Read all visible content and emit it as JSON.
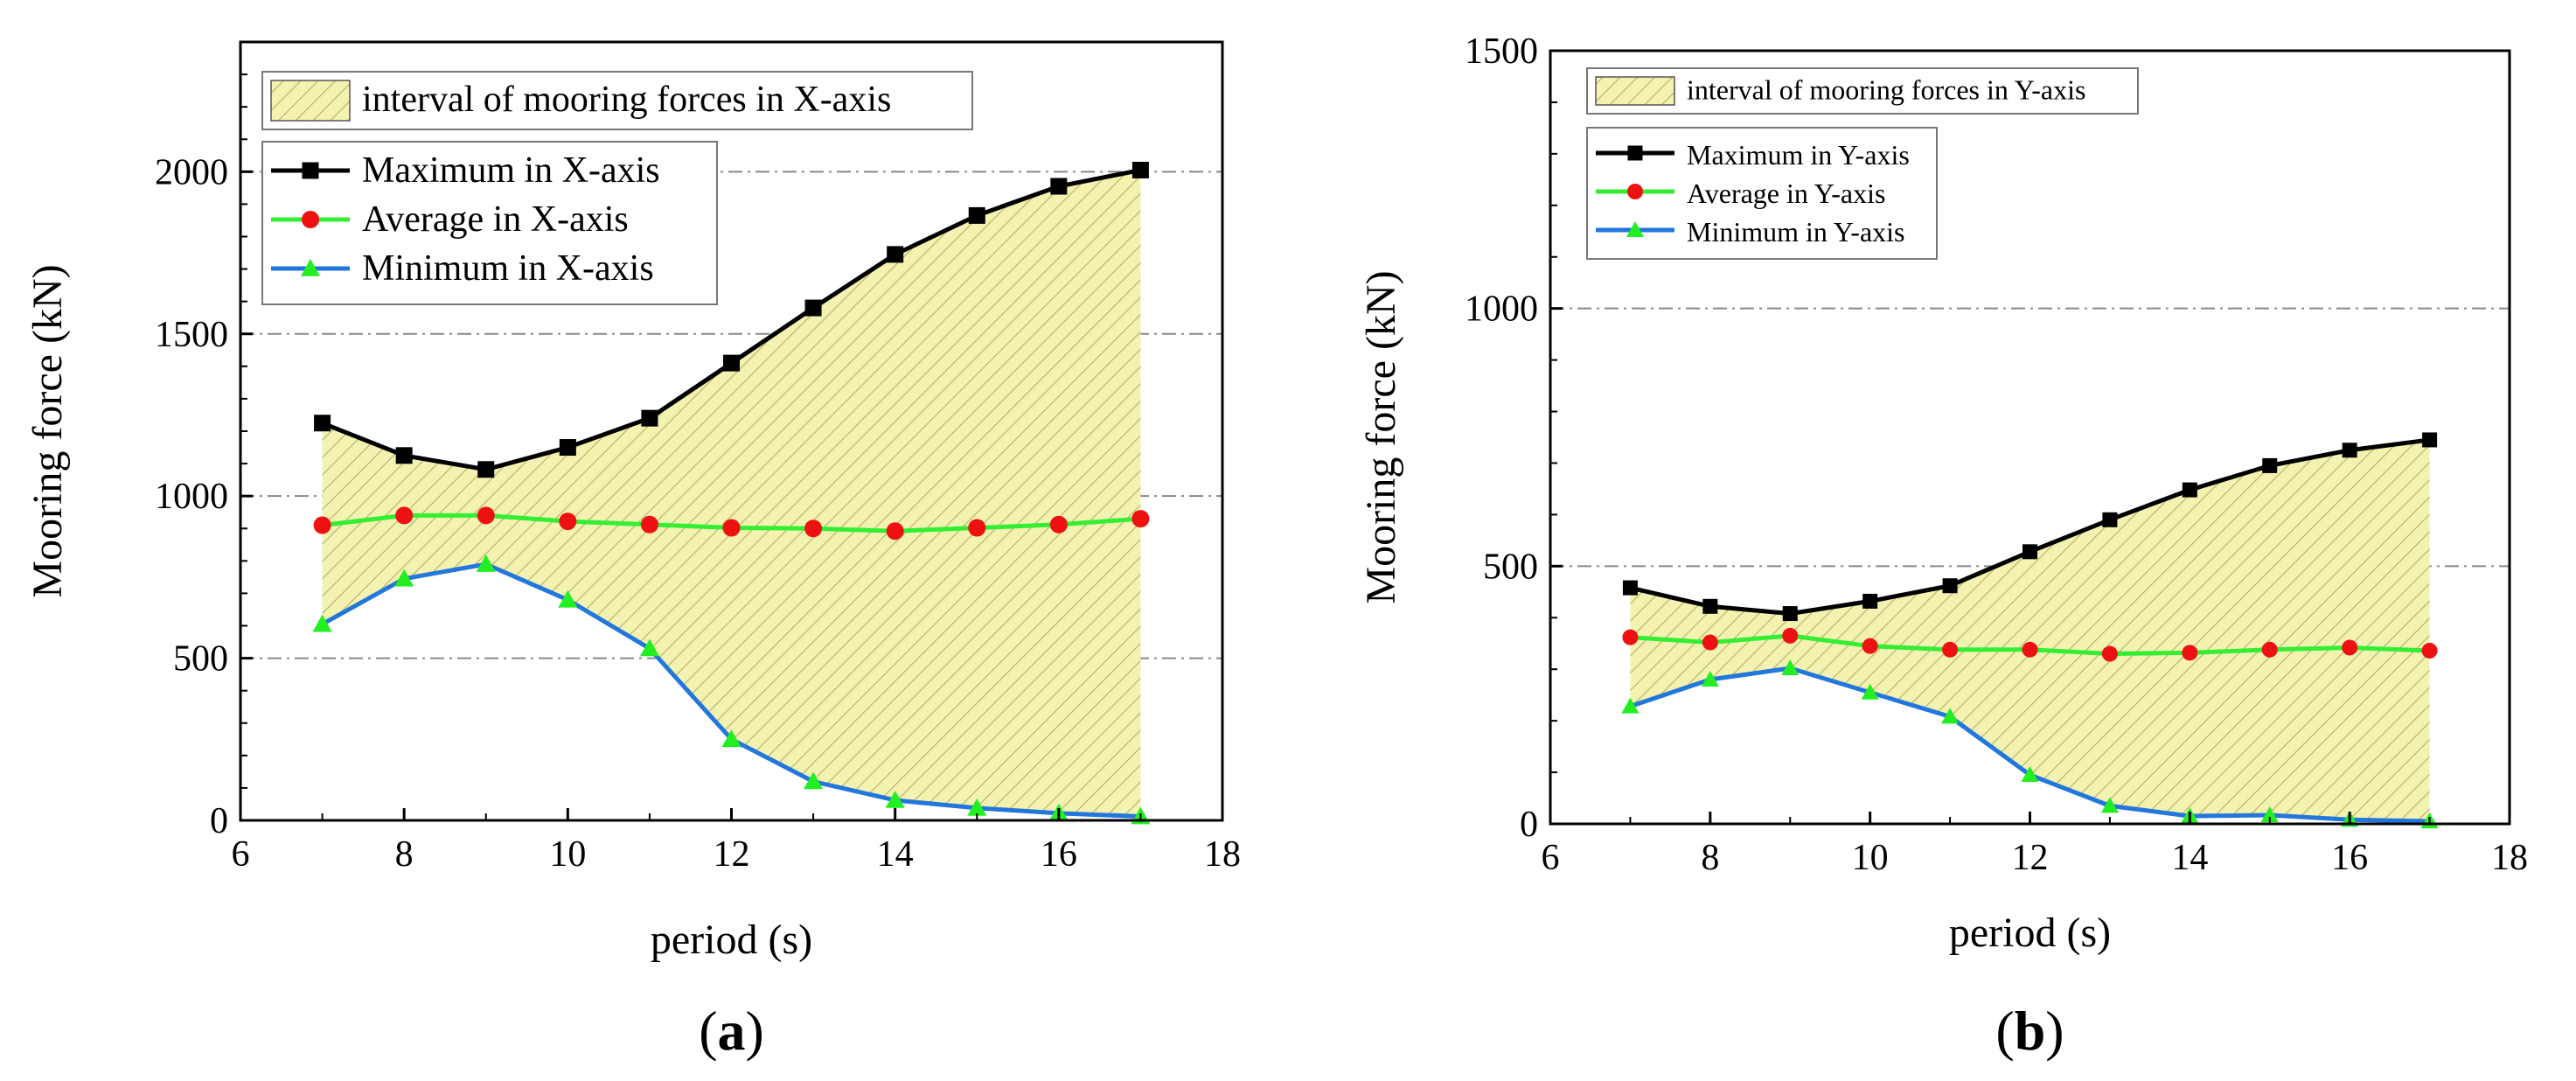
{
  "chart_data": [
    {
      "type": "line",
      "panel_label": "a",
      "xlabel": "period (s)",
      "ylabel": "Mooring force (kN)",
      "xlim": [
        6,
        18
      ],
      "ylim": [
        0,
        2400
      ],
      "xticks": [
        6,
        8,
        10,
        12,
        14,
        16,
        18
      ],
      "yticks": [
        0,
        500,
        1000,
        1500,
        2000
      ],
      "grid_y": [
        500,
        1000,
        1500,
        2000
      ],
      "x": [
        7,
        8,
        9,
        10,
        11,
        12,
        13,
        14,
        15,
        16,
        17
      ],
      "series": [
        {
          "name": "Maximum in X-axis",
          "color": "#000000",
          "marker": "square",
          "values": [
            1225,
            1125,
            1082,
            1150,
            1240,
            1410,
            1580,
            1745,
            1865,
            1955,
            2005
          ]
        },
        {
          "name": "Average in X-axis",
          "color": "#33ee33",
          "marker": "circle",
          "marker_color": "#ee1111",
          "values": [
            910,
            940,
            940,
            922,
            912,
            902,
            900,
            892,
            902,
            912,
            930
          ]
        },
        {
          "name": "Minimum in X-axis",
          "color": "#2277dd",
          "marker": "triangle",
          "marker_color": "#22ee22",
          "values": [
            605,
            745,
            790,
            680,
            530,
            250,
            120,
            62,
            38,
            22,
            12
          ]
        }
      ],
      "fill": {
        "name": "interval of mooring forces in X-axis",
        "between": [
          "Minimum in X-axis",
          "Maximum in X-axis"
        ],
        "color": "#f4f2b0",
        "hatch": "#b8b46c"
      },
      "legend": [
        "interval of mooring forces in X-axis",
        "Maximum in X-axis",
        "Average in X-axis",
        "Minimum in X-axis"
      ],
      "legend_location": "top-left"
    },
    {
      "type": "line",
      "panel_label": "b",
      "xlabel": "period (s)",
      "ylabel": "Mooring force (kN)",
      "xlim": [
        6,
        18
      ],
      "ylim": [
        0,
        1500
      ],
      "xticks": [
        6,
        8,
        10,
        12,
        14,
        16,
        18
      ],
      "yticks": [
        0,
        500,
        1000,
        1500
      ],
      "grid_y": [
        500,
        1000
      ],
      "x": [
        7,
        8,
        9,
        10,
        11,
        12,
        13,
        14,
        15,
        16,
        17
      ],
      "series": [
        {
          "name": "Maximum in Y-axis",
          "color": "#000000",
          "marker": "square",
          "values": [
            458,
            422,
            408,
            432,
            462,
            528,
            590,
            648,
            695,
            725,
            745
          ]
        },
        {
          "name": "Average in Y-axis",
          "color": "#33ee33",
          "marker": "circle",
          "marker_color": "#ee1111",
          "values": [
            362,
            352,
            365,
            345,
            338,
            338,
            330,
            332,
            338,
            342,
            336
          ]
        },
        {
          "name": "Minimum in Y-axis",
          "color": "#2277dd",
          "marker": "triangle",
          "marker_color": "#22ee22",
          "values": [
            228,
            280,
            302,
            255,
            208,
            95,
            35,
            15,
            17,
            8,
            5
          ]
        }
      ],
      "fill": {
        "name": "interval of mooring forces in Y-axis",
        "between": [
          "Minimum in Y-axis",
          "Maximum in Y-axis"
        ],
        "color": "#f4f2b0",
        "hatch": "#b8b46c"
      },
      "legend": [
        "interval of mooring forces in Y-axis",
        "Maximum in Y-axis",
        "Average in Y-axis",
        "Minimum in Y-axis"
      ],
      "legend_location": "top-left"
    }
  ]
}
